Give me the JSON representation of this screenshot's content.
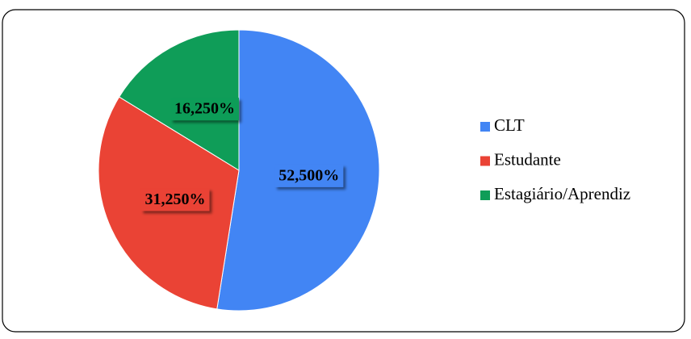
{
  "chart_data": {
    "type": "pie",
    "categories": [
      "CLT",
      "Estudante",
      "Estagiário/Aprendiz"
    ],
    "values": [
      52.5,
      31.25,
      16.25
    ],
    "value_labels": [
      "52,500%",
      "31,250%",
      "16,250%"
    ],
    "colors": [
      "#4285f4",
      "#ea4335",
      "#0f9d58"
    ],
    "legend": "right"
  }
}
